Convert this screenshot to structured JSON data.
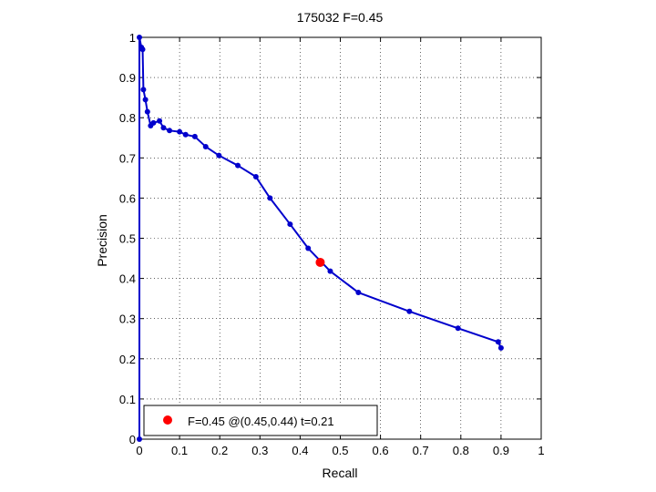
{
  "chart_data": {
    "type": "line",
    "title": "175032 F=0.45",
    "xlabel": "Recall",
    "ylabel": "Precision",
    "xlim": [
      0,
      1
    ],
    "ylim": [
      0,
      1
    ],
    "grid": true,
    "legend_placement": "bottom-left",
    "xticks": [
      "0",
      "0.1",
      "0.2",
      "0.3",
      "0.4",
      "0.5",
      "0.6",
      "0.7",
      "0.8",
      "0.9",
      "1"
    ],
    "yticks": [
      "0",
      "0.1",
      "0.2",
      "0.3",
      "0.4",
      "0.5",
      "0.6",
      "0.7",
      "0.8",
      "0.9",
      "1"
    ],
    "series": [
      {
        "color": "#0000cc",
        "points": [
          [
            0.0,
            0.0
          ],
          [
            0.0,
            1.0
          ],
          [
            0.005,
            0.975
          ],
          [
            0.008,
            0.97
          ],
          [
            0.01,
            0.87
          ],
          [
            0.015,
            0.845
          ],
          [
            0.02,
            0.815
          ],
          [
            0.028,
            0.78
          ],
          [
            0.035,
            0.787
          ],
          [
            0.05,
            0.792
          ],
          [
            0.06,
            0.775
          ],
          [
            0.075,
            0.768
          ],
          [
            0.1,
            0.765
          ],
          [
            0.115,
            0.758
          ],
          [
            0.138,
            0.753
          ],
          [
            0.165,
            0.728
          ],
          [
            0.198,
            0.706
          ],
          [
            0.245,
            0.681
          ],
          [
            0.29,
            0.653
          ],
          [
            0.325,
            0.6
          ],
          [
            0.375,
            0.535
          ],
          [
            0.42,
            0.475
          ],
          [
            0.475,
            0.418
          ],
          [
            0.545,
            0.365
          ],
          [
            0.672,
            0.318
          ],
          [
            0.793,
            0.276
          ],
          [
            0.893,
            0.242
          ],
          [
            0.9,
            0.227
          ]
        ]
      }
    ],
    "highlight": {
      "x": 0.45,
      "y": 0.44,
      "color": "#ff0000"
    },
    "legend": {
      "label": "F=0.45 @(0.45,0.44) t=0.21"
    }
  }
}
